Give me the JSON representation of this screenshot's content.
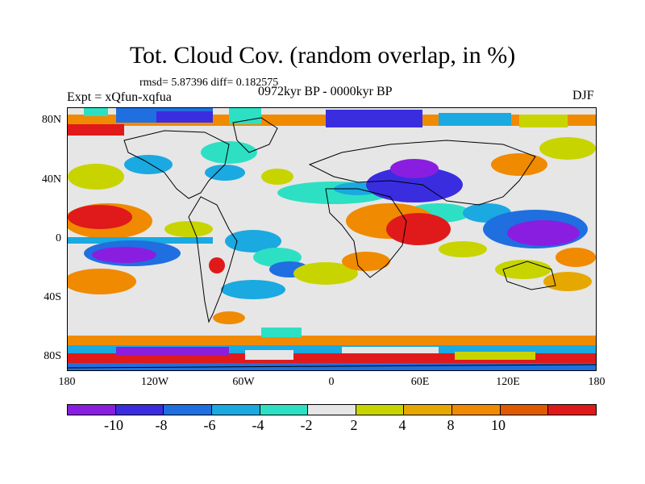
{
  "title": "Tot. Cloud Cov. (random overlap, in %)",
  "stats": "rmsd= 5.87396 diff= 0.182575",
  "experiment": "Expt = xQfun-xqfua",
  "period": "0972kyr BP - 0000kyr BP",
  "season": "DJF",
  "lat_labels": [
    "80N",
    "40N",
    "0",
    "40S",
    "80S"
  ],
  "lon_labels": [
    "180",
    "120W",
    "60W",
    "0",
    "60E",
    "120E",
    "180"
  ],
  "colorbar": {
    "colors": [
      "#8a1ee0",
      "#3a2de0",
      "#1f6fe0",
      "#1aa9e0",
      "#2de0c4",
      "#e6e6e6",
      "#c8d400",
      "#e6a800",
      "#f08a00",
      "#e05a00",
      "#e01a1a"
    ],
    "labels": [
      "-10",
      "-8",
      "-6",
      "-4",
      "-2",
      "2",
      "4",
      "8",
      "10"
    ]
  }
}
